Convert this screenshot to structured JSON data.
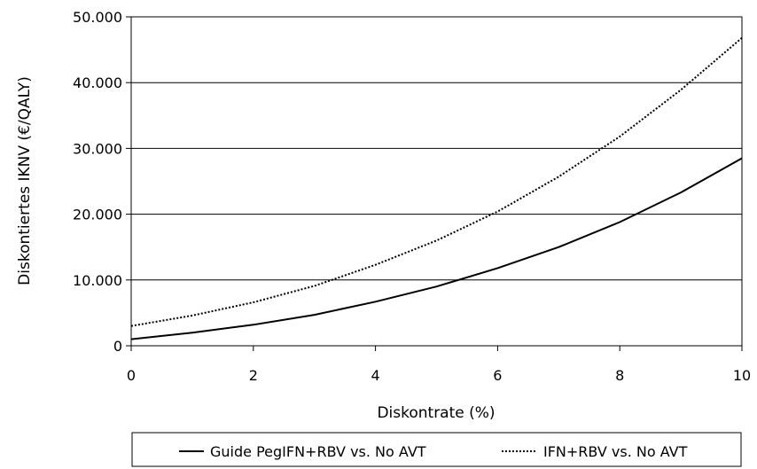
{
  "chart_data": {
    "type": "line",
    "title": "",
    "xlabel": "Diskontrate (%)",
    "ylabel": "Diskontiertes IKNV (€/QALY)",
    "xlim": [
      0,
      10
    ],
    "ylim": [
      0,
      50000
    ],
    "x_ticks": [
      0,
      2,
      4,
      6,
      8,
      10
    ],
    "x_tick_labels": [
      "0",
      "2",
      "4",
      "6",
      "8",
      "10"
    ],
    "y_ticks": [
      0,
      10000,
      20000,
      30000,
      40000,
      50000
    ],
    "y_tick_labels": [
      "0",
      "10.000",
      "20.000",
      "30.000",
      "40.000",
      "50.000"
    ],
    "grid": "horizontal",
    "legend_position": "bottom",
    "series": [
      {
        "name": "Guide PegIFN+RBV vs. No AVT",
        "style": "solid",
        "color": "#000000",
        "x": [
          0,
          1,
          2,
          3,
          4,
          5,
          6,
          7,
          8,
          9,
          10
        ],
        "y": [
          1000,
          2000,
          3200,
          4700,
          6700,
          9000,
          11800,
          15000,
          18800,
          23300,
          28500
        ]
      },
      {
        "name": "IFN+RBV vs. No AVT",
        "style": "dotted",
        "color": "#000000",
        "x": [
          0,
          1,
          2,
          3,
          4,
          5,
          6,
          7,
          8,
          9,
          10
        ],
        "y": [
          3000,
          4600,
          6600,
          9100,
          12300,
          16000,
          20400,
          25700,
          31800,
          38900,
          46800
        ]
      }
    ]
  }
}
